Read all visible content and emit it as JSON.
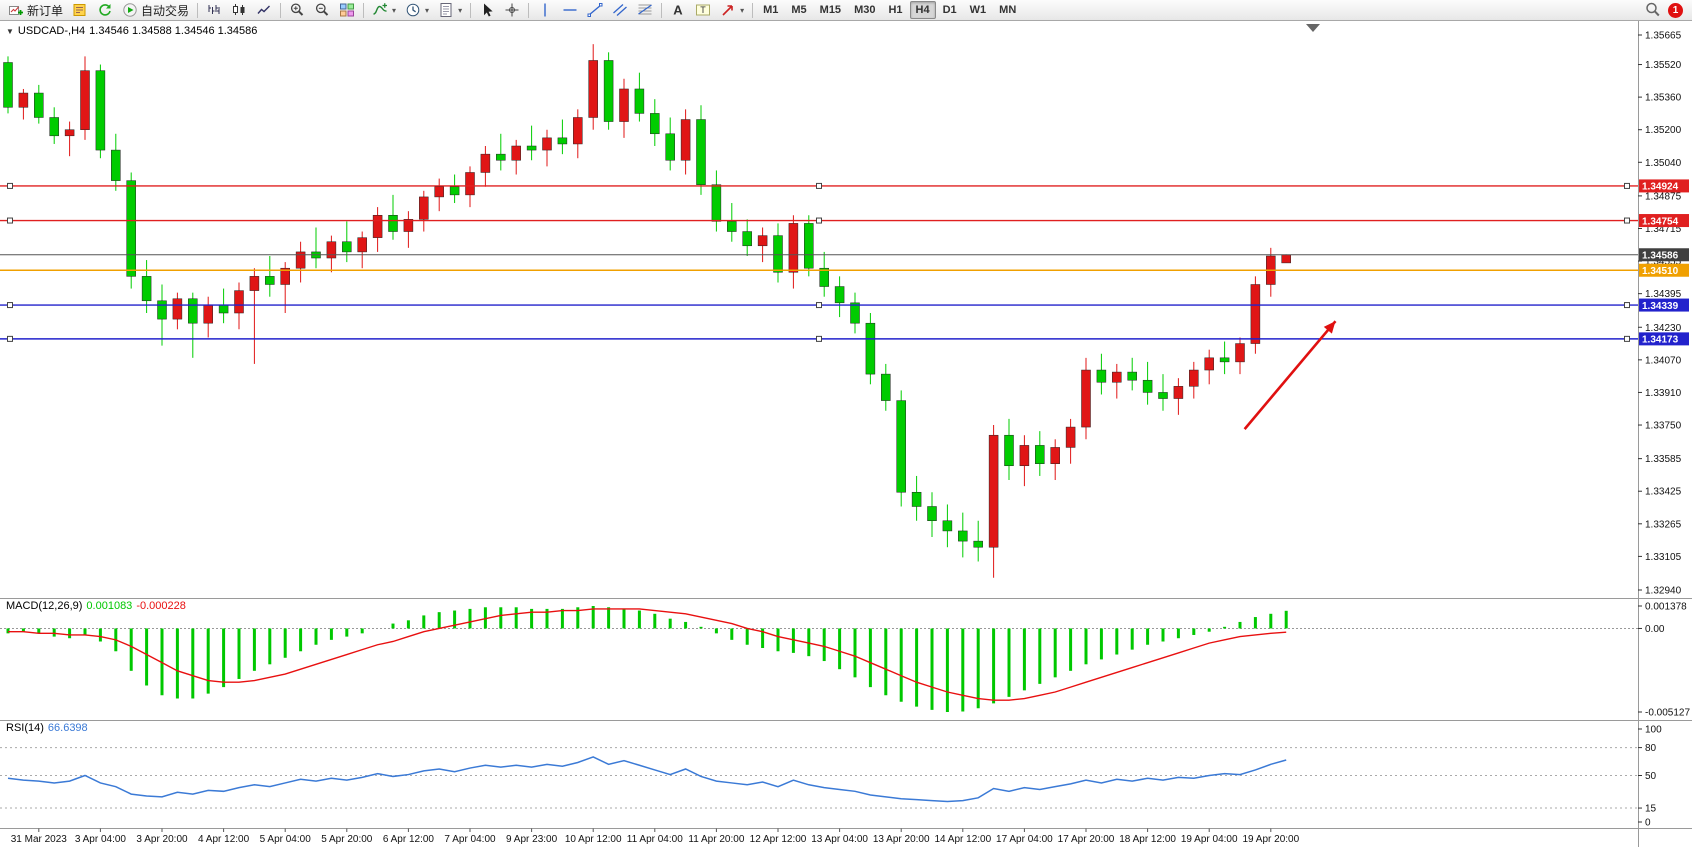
{
  "toolbar": {
    "groups": [
      [
        {
          "name": "new-order",
          "icon": "new-order",
          "label": "新订单"
        },
        {
          "name": "metaeditor",
          "icon": "metaeditor"
        },
        {
          "name": "refresh",
          "icon": "refresh"
        },
        {
          "name": "auto-trading",
          "icon": "auto-trading",
          "label": "自动交易"
        }
      ],
      [
        {
          "name": "chart-bars",
          "icon": "bars"
        },
        {
          "name": "chart-candlesticks",
          "icon": "candles"
        },
        {
          "name": "chart-line",
          "icon": "line-chart"
        }
      ],
      [
        {
          "name": "zoom-in",
          "icon": "zoom-in"
        },
        {
          "name": "zoom-out",
          "icon": "zoom-out"
        },
        {
          "name": "tile-windows",
          "icon": "tile-windows"
        }
      ],
      [
        {
          "name": "indicators",
          "icon": "indicators",
          "dropdown": true
        },
        {
          "name": "periods",
          "icon": "periods",
          "dropdown": true
        },
        {
          "name": "templates",
          "icon": "templates",
          "dropdown": true
        }
      ],
      [
        {
          "name": "cursor",
          "icon": "cursor"
        },
        {
          "name": "crosshair",
          "icon": "crosshair"
        }
      ],
      [
        {
          "name": "vertical-line",
          "icon": "vline"
        },
        {
          "name": "horizontal-line",
          "icon": "hline"
        },
        {
          "name": "trendline",
          "icon": "trendline"
        },
        {
          "name": "equidistant-channel",
          "icon": "channel"
        },
        {
          "name": "fibonacci-retracement",
          "icon": "fibonacci"
        }
      ],
      [
        {
          "name": "text",
          "icon": "text"
        },
        {
          "name": "text-label",
          "icon": "text-label"
        },
        {
          "name": "arrows",
          "icon": "arrows",
          "dropdown": true
        }
      ]
    ],
    "timeframes": [
      "M1",
      "M5",
      "M15",
      "M30",
      "H1",
      "H4",
      "D1",
      "W1",
      "MN"
    ],
    "active_timeframe": "H4",
    "notification_count": "1"
  },
  "chart": {
    "collapse_glyph": "▼",
    "title": "USDCAD-,H4",
    "ohlc_text": "1.34546 1.34588 1.34546 1.34586",
    "bull_color": "#e01616",
    "bear_color": "#00cc00",
    "price_ticks": [
      1.35665,
      1.3552,
      1.3536,
      1.352,
      1.3504,
      1.34875,
      1.34715,
      1.34555,
      1.34395,
      1.3423,
      1.3407,
      1.3391,
      1.3375,
      1.33585,
      1.33425,
      1.33265,
      1.33105,
      1.3294
    ],
    "hlines": [
      {
        "price": 1.34924,
        "label": "1.34924",
        "color": "#e02020",
        "selected": true
      },
      {
        "price": 1.34754,
        "label": "1.34754",
        "color": "#e02020",
        "selected": true
      },
      {
        "price": 1.3451,
        "label": "1.34510",
        "color": "#f0a000",
        "selected": false
      },
      {
        "price": 1.34339,
        "label": "1.34339",
        "color": "#2222cc",
        "selected": true
      },
      {
        "price": 1.34173,
        "label": "1.34173",
        "color": "#2222cc",
        "selected": true
      }
    ],
    "current_price": {
      "price": 1.34586,
      "label": "1.34586",
      "line_color": "#555555",
      "box_color": "#3f3f3f"
    },
    "arrow": {
      "color": "#e01010",
      "from": {
        "bar": 80.3,
        "price": 1.3373
      },
      "to": {
        "bar": 86.2,
        "price": 1.3426
      }
    }
  },
  "chart_data": [
    {
      "type": "candlestick",
      "symbol": "USDCAD",
      "period": "H4",
      "ylim": [
        1.3294,
        1.35665
      ],
      "ohlc": [
        [
          1.3553,
          1.3556,
          1.3528,
          1.3531
        ],
        [
          1.3531,
          1.354,
          1.3525,
          1.3538
        ],
        [
          1.3538,
          1.3542,
          1.3523,
          1.3526
        ],
        [
          1.3526,
          1.3531,
          1.3513,
          1.3517
        ],
        [
          1.3517,
          1.3524,
          1.3507,
          1.352
        ],
        [
          1.352,
          1.3556,
          1.3515,
          1.3549
        ],
        [
          1.3549,
          1.3552,
          1.3506,
          1.351
        ],
        [
          1.351,
          1.3518,
          1.349,
          1.3495
        ],
        [
          1.3495,
          1.3499,
          1.3442,
          1.3448
        ],
        [
          1.3448,
          1.3456,
          1.343,
          1.3436
        ],
        [
          1.3436,
          1.3444,
          1.3414,
          1.3427
        ],
        [
          1.3427,
          1.344,
          1.3422,
          1.3437
        ],
        [
          1.3437,
          1.344,
          1.3408,
          1.3425
        ],
        [
          1.3425,
          1.3438,
          1.3418,
          1.3434
        ],
        [
          1.3434,
          1.3442,
          1.3425,
          1.343
        ],
        [
          1.343,
          1.3445,
          1.3422,
          1.3441
        ],
        [
          1.3441,
          1.3452,
          1.3405,
          1.3448
        ],
        [
          1.3448,
          1.3458,
          1.3438,
          1.3444
        ],
        [
          1.3444,
          1.3455,
          1.343,
          1.3452
        ],
        [
          1.3452,
          1.3465,
          1.3445,
          1.346
        ],
        [
          1.346,
          1.3472,
          1.3452,
          1.3457
        ],
        [
          1.3457,
          1.3468,
          1.345,
          1.3465
        ],
        [
          1.3465,
          1.3475,
          1.3455,
          1.346
        ],
        [
          1.346,
          1.347,
          1.3452,
          1.3467
        ],
        [
          1.3467,
          1.3482,
          1.346,
          1.3478
        ],
        [
          1.3478,
          1.3488,
          1.3466,
          1.347
        ],
        [
          1.347,
          1.348,
          1.3462,
          1.3476
        ],
        [
          1.3476,
          1.349,
          1.347,
          1.3487
        ],
        [
          1.3487,
          1.3496,
          1.348,
          1.3492
        ],
        [
          1.3492,
          1.3498,
          1.3484,
          1.3488
        ],
        [
          1.3488,
          1.3502,
          1.3482,
          1.3499
        ],
        [
          1.3499,
          1.3512,
          1.3492,
          1.3508
        ],
        [
          1.3508,
          1.3518,
          1.35,
          1.3505
        ],
        [
          1.3505,
          1.3515,
          1.3498,
          1.3512
        ],
        [
          1.3512,
          1.3522,
          1.3505,
          1.351
        ],
        [
          1.351,
          1.352,
          1.3502,
          1.3516
        ],
        [
          1.3516,
          1.3525,
          1.3508,
          1.3513
        ],
        [
          1.3513,
          1.353,
          1.3506,
          1.3526
        ],
        [
          1.3526,
          1.3562,
          1.352,
          1.3554
        ],
        [
          1.3554,
          1.3558,
          1.352,
          1.3524
        ],
        [
          1.3524,
          1.3545,
          1.3516,
          1.354
        ],
        [
          1.354,
          1.3548,
          1.3524,
          1.3528
        ],
        [
          1.3528,
          1.3535,
          1.3512,
          1.3518
        ],
        [
          1.3518,
          1.3526,
          1.35,
          1.3505
        ],
        [
          1.3505,
          1.353,
          1.3498,
          1.3525
        ],
        [
          1.3525,
          1.3532,
          1.3488,
          1.3493
        ],
        [
          1.3493,
          1.35,
          1.347,
          1.3475
        ],
        [
          1.3475,
          1.3484,
          1.3465,
          1.347
        ],
        [
          1.347,
          1.3476,
          1.3458,
          1.3463
        ],
        [
          1.3463,
          1.3472,
          1.3455,
          1.3468
        ],
        [
          1.3468,
          1.3474,
          1.3445,
          1.345
        ],
        [
          1.345,
          1.3478,
          1.3442,
          1.3474
        ],
        [
          1.3474,
          1.3478,
          1.3448,
          1.3452
        ],
        [
          1.3452,
          1.346,
          1.3438,
          1.3443
        ],
        [
          1.3443,
          1.3448,
          1.3428,
          1.3435
        ],
        [
          1.3435,
          1.344,
          1.342,
          1.3425
        ],
        [
          1.3425,
          1.343,
          1.3395,
          1.34
        ],
        [
          1.34,
          1.3405,
          1.3382,
          1.3387
        ],
        [
          1.3387,
          1.3392,
          1.3335,
          1.3342
        ],
        [
          1.3342,
          1.335,
          1.3328,
          1.3335
        ],
        [
          1.3335,
          1.3342,
          1.332,
          1.3328
        ],
        [
          1.3328,
          1.3336,
          1.3315,
          1.3323
        ],
        [
          1.3323,
          1.3332,
          1.331,
          1.3318
        ],
        [
          1.3318,
          1.3328,
          1.3308,
          1.3315
        ],
        [
          1.3315,
          1.3375,
          1.33,
          1.337
        ],
        [
          1.337,
          1.3378,
          1.3348,
          1.3355
        ],
        [
          1.3355,
          1.337,
          1.3345,
          1.3365
        ],
        [
          1.3365,
          1.3372,
          1.335,
          1.3356
        ],
        [
          1.3356,
          1.3368,
          1.3348,
          1.3364
        ],
        [
          1.3364,
          1.3378,
          1.3356,
          1.3374
        ],
        [
          1.3374,
          1.3408,
          1.3368,
          1.3402
        ],
        [
          1.3402,
          1.341,
          1.339,
          1.3396
        ],
        [
          1.3396,
          1.3405,
          1.3388,
          1.3401
        ],
        [
          1.3401,
          1.3408,
          1.3392,
          1.3397
        ],
        [
          1.3397,
          1.3406,
          1.3385,
          1.3391
        ],
        [
          1.3391,
          1.34,
          1.3382,
          1.3388
        ],
        [
          1.3388,
          1.3398,
          1.338,
          1.3394
        ],
        [
          1.3394,
          1.3406,
          1.3388,
          1.3402
        ],
        [
          1.3402,
          1.3412,
          1.3395,
          1.3408
        ],
        [
          1.3408,
          1.3416,
          1.34,
          1.3406
        ],
        [
          1.3406,
          1.3418,
          1.34,
          1.3415
        ],
        [
          1.3415,
          1.3448,
          1.341,
          1.3444
        ],
        [
          1.3444,
          1.3462,
          1.3438,
          1.3458
        ],
        [
          1.34546,
          1.34588,
          1.34546,
          1.34586
        ]
      ]
    },
    {
      "type": "bar",
      "name": "MACD(12,26,9)",
      "ylim": [
        -0.005127,
        0.001378
      ],
      "values": [
        -0.0003,
        -0.0002,
        -0.0003,
        -0.0005,
        -0.0006,
        -0.0004,
        -0.0008,
        -0.0014,
        -0.0026,
        -0.0035,
        -0.0041,
        -0.0043,
        -0.0043,
        -0.004,
        -0.0036,
        -0.0031,
        -0.0026,
        -0.0022,
        -0.0018,
        -0.0014,
        -0.001,
        -0.0007,
        -0.0005,
        -0.0003,
        0.0,
        0.0003,
        0.0005,
        0.0008,
        0.001,
        0.0011,
        0.0012,
        0.0013,
        0.0013,
        0.0013,
        0.0012,
        0.0012,
        0.0012,
        0.0013,
        0.001378,
        0.0013,
        0.0012,
        0.0011,
        0.0009,
        0.0006,
        0.0004,
        0.0001,
        -0.0003,
        -0.0007,
        -0.001,
        -0.0012,
        -0.0014,
        -0.0015,
        -0.0017,
        -0.002,
        -0.0025,
        -0.003,
        -0.0036,
        -0.0041,
        -0.0045,
        -0.0048,
        -0.005,
        -0.005127,
        -0.0051,
        -0.0049,
        -0.0046,
        -0.0042,
        -0.0038,
        -0.0034,
        -0.003,
        -0.0026,
        -0.0022,
        -0.0019,
        -0.0016,
        -0.0013,
        -0.001,
        -0.0008,
        -0.0006,
        -0.0004,
        -0.0002,
        0.0001,
        0.0004,
        0.0007,
        0.0009,
        0.001083
      ],
      "signal": [
        -0.0002,
        -0.0002,
        -0.0003,
        -0.0003,
        -0.0004,
        -0.0004,
        -0.0005,
        -0.0007,
        -0.0011,
        -0.0016,
        -0.0021,
        -0.0026,
        -0.0029,
        -0.0032,
        -0.0033,
        -0.0033,
        -0.0032,
        -0.003,
        -0.0028,
        -0.0025,
        -0.0022,
        -0.0019,
        -0.0016,
        -0.0013,
        -0.001,
        -0.0008,
        -0.0005,
        -0.0002,
        0.0,
        0.0002,
        0.0004,
        0.0006,
        0.0008,
        0.0009,
        0.001,
        0.001,
        0.0011,
        0.0011,
        0.0012,
        0.0012,
        0.0012,
        0.0012,
        0.0011,
        0.001,
        0.0009,
        0.0007,
        0.0005,
        0.0003,
        0.0,
        -0.0002,
        -0.0005,
        -0.0007,
        -0.0009,
        -0.0011,
        -0.0014,
        -0.0017,
        -0.0021,
        -0.0025,
        -0.0029,
        -0.0033,
        -0.0036,
        -0.0039,
        -0.0041,
        -0.0043,
        -0.0044,
        -0.0044,
        -0.0043,
        -0.0041,
        -0.0039,
        -0.0036,
        -0.0033,
        -0.003,
        -0.0027,
        -0.0024,
        -0.0021,
        -0.0018,
        -0.0015,
        -0.0012,
        -0.0009,
        -0.0007,
        -0.0005,
        -0.0004,
        -0.0003,
        -0.000228
      ]
    },
    {
      "type": "line",
      "name": "RSI(14)",
      "ylim": [
        0,
        100
      ],
      "values": [
        47,
        45,
        44,
        42,
        44,
        50,
        42,
        38,
        30,
        28,
        27,
        32,
        30,
        34,
        33,
        37,
        40,
        38,
        42,
        46,
        44,
        47,
        45,
        48,
        52,
        49,
        51,
        55,
        57,
        54,
        58,
        61,
        59,
        61,
        59,
        62,
        60,
        64,
        70,
        62,
        66,
        61,
        56,
        51,
        57,
        49,
        44,
        42,
        40,
        43,
        38,
        45,
        40,
        37,
        35,
        33,
        29,
        27,
        25,
        24,
        23,
        22,
        23,
        26,
        36,
        33,
        37,
        35,
        38,
        41,
        45,
        42,
        46,
        44,
        47,
        45,
        48,
        47,
        50,
        52,
        51,
        56,
        62,
        66.6398
      ]
    }
  ],
  "macd": {
    "name": "MACD(12,26,9)",
    "value_main": "0.001083",
    "value_signal": "-0.000228",
    "histogram_color": "#00c800",
    "signal_color": "#e81010",
    "scale": [
      {
        "value": 0.001378,
        "label": "0.001378"
      },
      {
        "value": 0,
        "label": "0.00"
      },
      {
        "value": -0.005127,
        "label": "-0.005127"
      }
    ]
  },
  "rsi": {
    "name": "RSI(14)",
    "value": "66.6398",
    "line_color": "#3b7ad6",
    "scale": [
      {
        "value": 100,
        "label": "100",
        "line": false
      },
      {
        "value": 80,
        "label": "80",
        "line": true
      },
      {
        "value": 50,
        "label": "50",
        "line": true
      },
      {
        "value": 15,
        "label": "15",
        "line": true
      },
      {
        "value": 0,
        "label": "0",
        "line": false
      }
    ]
  },
  "time_axis": {
    "labels": [
      "31 Mar 2023",
      "3 Apr 04:00",
      "3 Apr 20:00",
      "4 Apr 12:00",
      "5 Apr 04:00",
      "5 Apr 20:00",
      "6 Apr 12:00",
      "7 Apr 04:00",
      "9 Apr 23:00",
      "10 Apr 12:00",
      "11 Apr 04:00",
      "11 Apr 20:00",
      "12 Apr 12:00",
      "13 Apr 04:00",
      "13 Apr 20:00",
      "14 Apr 12:00",
      "17 Apr 04:00",
      "17 Apr 20:00",
      "18 Apr 12:00",
      "19 Apr 04:00",
      "19 Apr 20:00"
    ]
  }
}
